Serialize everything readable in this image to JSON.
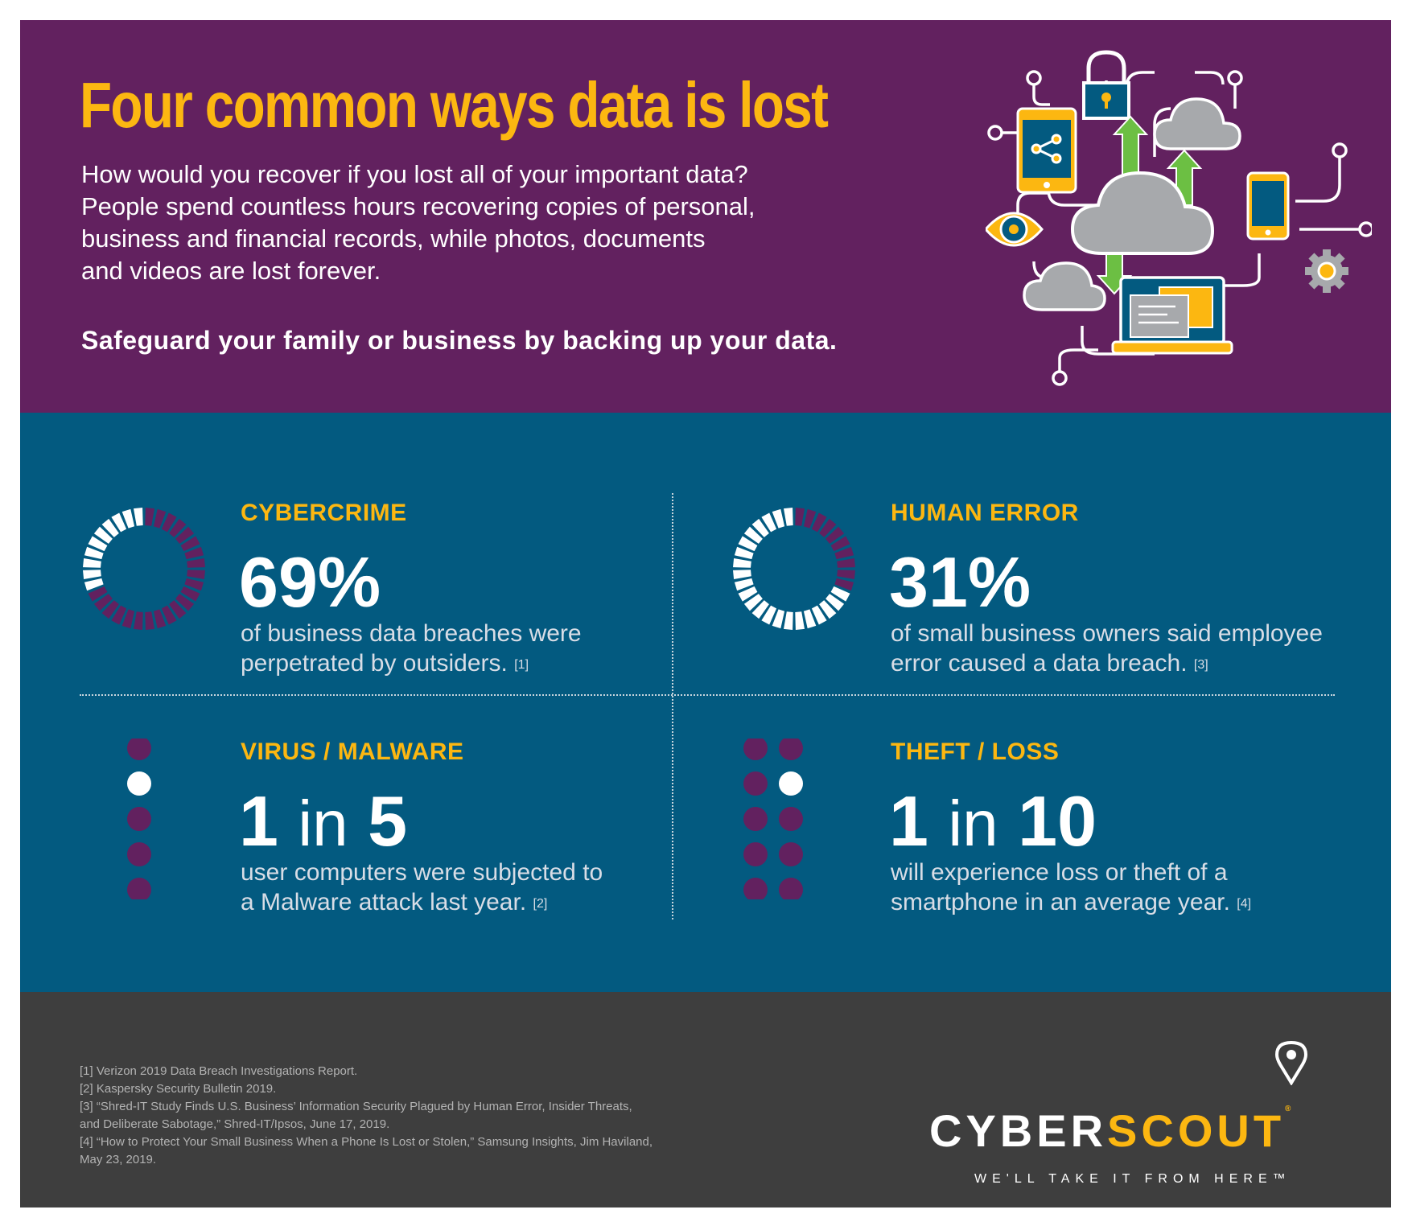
{
  "header": {
    "title": "Four common ways data is lost",
    "intro_lines": [
      "How would you recover if you lost all of your important data?",
      "People spend countless hours recovering copies of personal,",
      "business and financial records, while photos, documents",
      "and videos are lost forever."
    ],
    "tagline": "Safeguard your family or business by backing up your data."
  },
  "stats": {
    "cybercrime": {
      "category": "CYBERCRIME",
      "figure": "69%",
      "desc_line1": "of business data breaches were",
      "desc_line2": "perpetrated by outsiders.",
      "ref": "[1]",
      "share": 0.69
    },
    "human_error": {
      "category": "HUMAN ERROR",
      "figure": "31%",
      "desc_line1": "of small business owners said employee",
      "desc_line2": "error caused a data breach.",
      "ref": "[3]",
      "share": 0.31
    },
    "malware": {
      "category": "VIRUS / MALWARE",
      "num": "1",
      "in": "in",
      "den": "5",
      "desc_line1": "user computers were subjected to",
      "desc_line2": "a Malware attack last year.",
      "ref": "[2]"
    },
    "theft": {
      "category": "THEFT / LOSS",
      "num": "1",
      "in": "in",
      "den": "10",
      "desc_line1": "will experience loss or theft of a",
      "desc_line2": "smartphone in an average year.",
      "ref": "[4]"
    }
  },
  "footnotes": [
    "[1] Verizon 2019 Data Breach Investigations Report.",
    "[2] Kaspersky Security Bulletin 2019.",
    "[3] “Shred-IT Study Finds U.S. Business’ Information Security Plagued by Human Error, Insider Threats,",
    "and Deliberate Sabotage,” Shred-IT/Ipsos, June 17, 2019.",
    "[4] “How to Protect Your Small Business When a Phone Is Lost or Stolen,” Samsung Insights, Jim Haviland,",
    "May 23, 2019."
  ],
  "brand": {
    "part1": "CYBER",
    "part2": "SCOUT",
    "trademark": "®",
    "slogan": "WE'LL TAKE IT FROM HERE™"
  },
  "colors": {
    "purple": "#62215f",
    "blue": "#035a80",
    "gold": "#fcb711",
    "dark": "#3e3e3e"
  }
}
